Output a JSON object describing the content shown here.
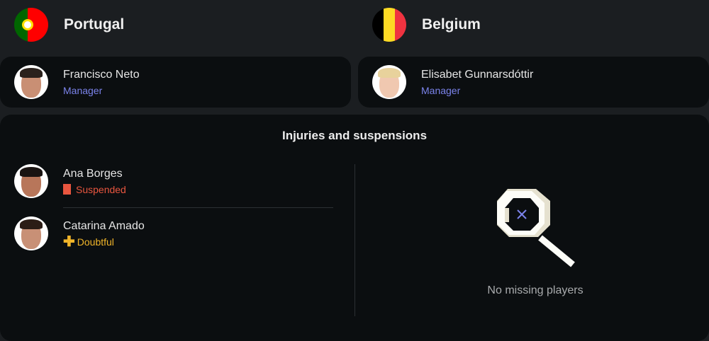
{
  "home": {
    "name": "Portugal",
    "flag_colors": [
      "#006600",
      "#ff0000"
    ],
    "manager": {
      "name": "Francisco Neto",
      "role": "Manager"
    }
  },
  "away": {
    "name": "Belgium",
    "flag_colors": [
      "#000000",
      "#fdda24",
      "#ef3340"
    ],
    "manager": {
      "name": "Elisabet Gunnarsdóttir",
      "role": "Manager"
    }
  },
  "injuries": {
    "title": "Injuries and suspensions",
    "home_players": [
      {
        "name": "Ana Borges",
        "status": "Suspended",
        "status_icon": "red-card-icon",
        "color": "#e8563f"
      },
      {
        "name": "Catarina Amado",
        "status": "Doubtful",
        "status_icon": "plus-icon",
        "color": "#f0b429"
      }
    ],
    "away_empty": "No missing players"
  },
  "accent": "#7b83eb"
}
